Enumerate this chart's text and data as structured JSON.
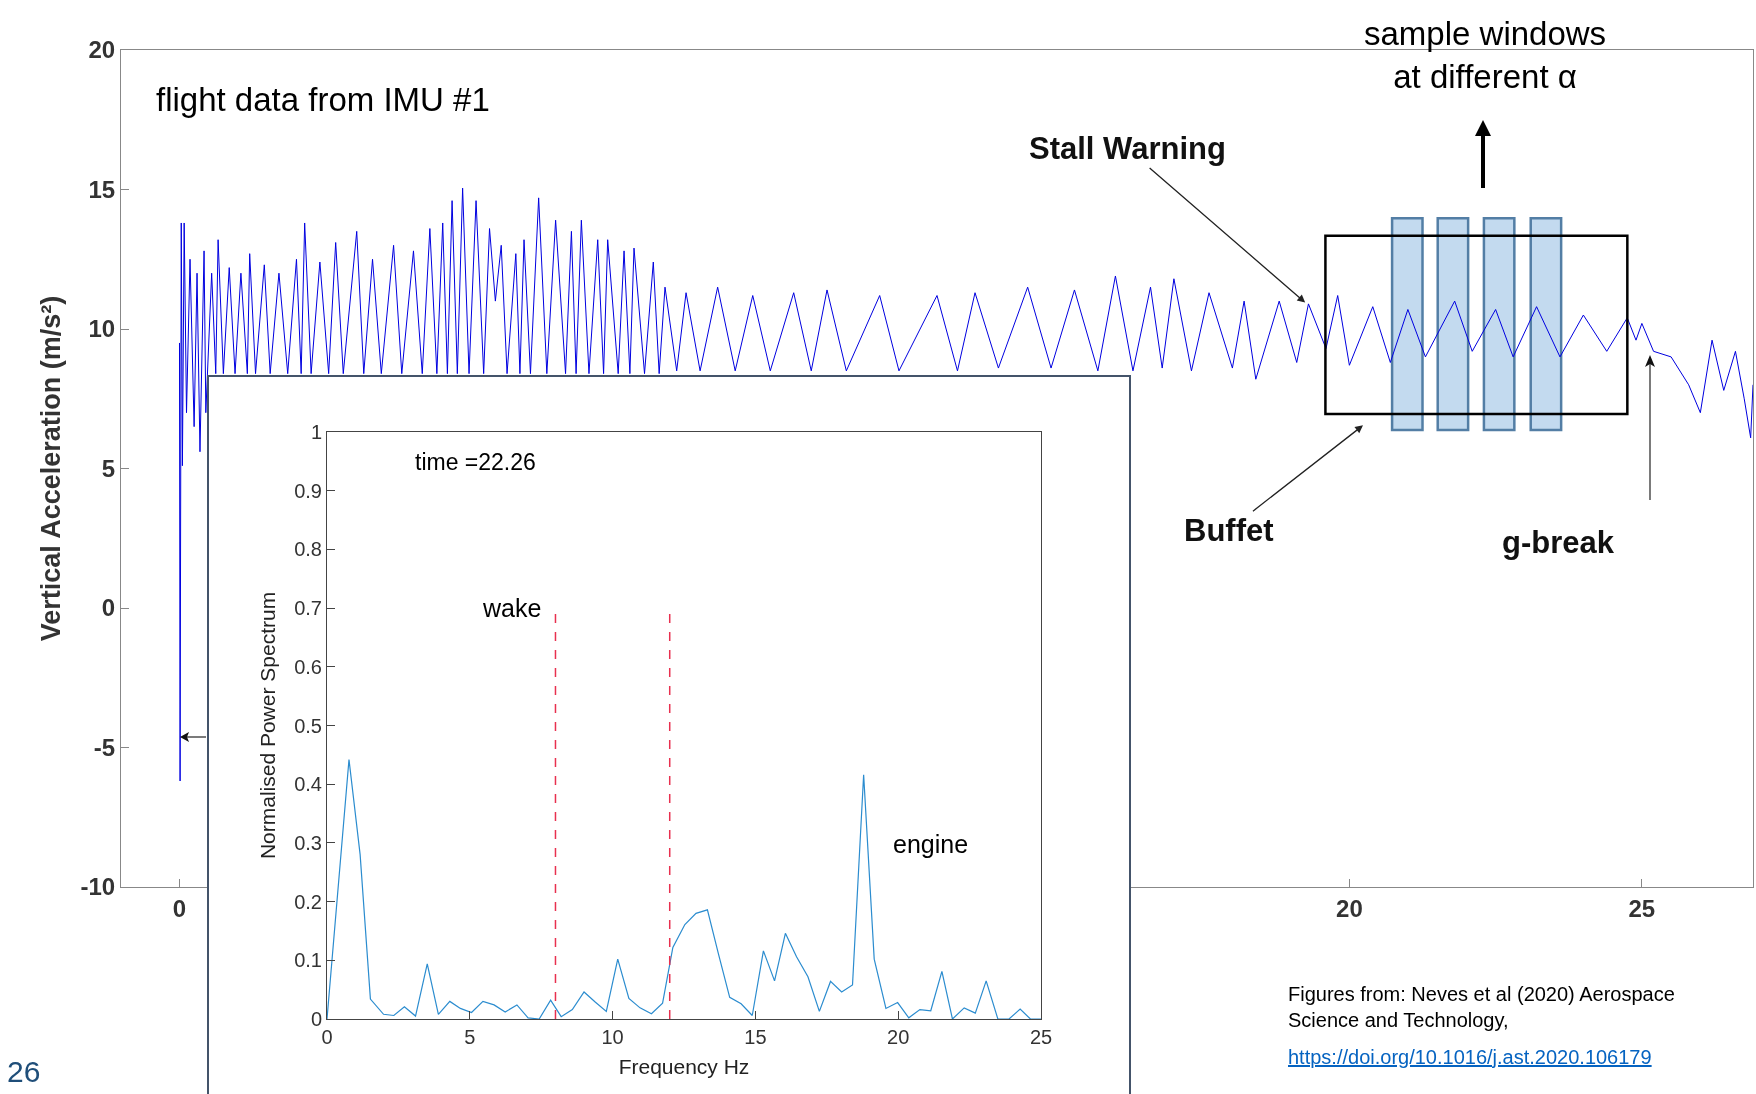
{
  "chart_data": [
    {
      "type": "line",
      "ylabel": "Vertical Acceleration (m/s²)",
      "color": "#0000e0",
      "x": [
        0,
        0.01,
        0.03,
        0.05,
        0.08,
        0.12,
        0.18,
        0.25,
        0.3,
        0.35,
        0.42,
        0.45,
        0.55,
        0.62,
        0.66,
        0.75,
        0.85,
        0.95,
        1.05,
        1.16,
        1.2,
        1.3,
        1.45,
        1.55,
        1.7,
        1.85,
        2.0,
        2.08,
        2.14,
        2.25,
        2.4,
        2.55,
        2.67,
        2.8,
        3.03,
        3.15,
        3.3,
        3.45,
        3.66,
        3.8,
        4.0,
        4.15,
        4.28,
        4.4,
        4.5,
        4.58,
        4.66,
        4.75,
        4.84,
        4.95,
        5.07,
        5.2,
        5.3,
        5.4,
        5.5,
        5.6,
        5.75,
        5.82,
        5.89,
        6.0,
        6.14,
        6.28,
        6.43,
        6.6,
        6.7,
        6.78,
        6.87,
        7.0,
        7.15,
        7.25,
        7.32,
        7.5,
        7.6,
        7.7,
        7.77,
        7.95,
        8.1,
        8.2,
        8.3,
        8.5,
        8.66,
        8.9,
        9.2,
        9.5,
        9.8,
        10.1,
        10.5,
        10.8,
        11.07,
        11.4,
        11.97,
        12.3,
        12.95,
        13.3,
        13.6,
        14.0,
        14.5,
        14.9,
        15.3,
        15.7,
        16.0,
        16.3,
        16.6,
        16.8,
        17.0,
        17.3,
        17.6,
        18.0,
        18.2,
        18.4,
        18.8,
        19.1,
        19.3,
        19.6,
        19.8,
        20.0,
        20.4,
        20.7,
        21.0,
        21.3,
        21.8,
        22.1,
        22.5,
        22.8,
        23.2,
        23.6,
        24.0,
        24.4,
        24.75,
        24.9,
        25.0,
        25.2,
        25.5,
        25.8,
        26.0,
        26.2,
        26.4,
        26.6,
        26.75,
        26.86,
        26.9
      ],
      "values": [
        9.5,
        -6.2,
        13.8,
        5.1,
        13.8,
        7.0,
        12.5,
        6.5,
        12.0,
        5.6,
        12.8,
        7.0,
        12.0,
        8.4,
        13.2,
        8.4,
        12.2,
        8.4,
        12.0,
        8.4,
        12.7,
        8.4,
        12.3,
        8.4,
        12.0,
        8.4,
        12.5,
        8.4,
        13.8,
        8.4,
        12.4,
        8.4,
        13.1,
        8.4,
        13.5,
        8.4,
        12.5,
        8.4,
        13.0,
        8.4,
        12.8,
        8.4,
        13.6,
        8.4,
        13.8,
        8.4,
        14.6,
        8.4,
        15.05,
        8.4,
        14.6,
        8.4,
        13.6,
        11.0,
        13.0,
        8.4,
        12.7,
        8.4,
        13.2,
        8.4,
        14.7,
        8.4,
        13.9,
        8.4,
        13.5,
        8.4,
        13.9,
        8.4,
        13.2,
        8.4,
        13.2,
        8.4,
        12.8,
        8.4,
        12.9,
        8.4,
        12.4,
        8.4,
        11.5,
        8.5,
        11.3,
        8.5,
        11.5,
        8.5,
        11.2,
        8.5,
        11.3,
        8.5,
        11.4,
        8.5,
        11.2,
        8.5,
        11.2,
        8.5,
        11.3,
        8.6,
        11.5,
        8.6,
        11.4,
        8.5,
        11.9,
        8.5,
        11.5,
        8.6,
        11.8,
        8.5,
        11.3,
        8.6,
        11.0,
        8.2,
        11.0,
        8.8,
        10.9,
        9.3,
        11.2,
        8.7,
        10.8,
        8.8,
        10.7,
        9.0,
        11.0,
        9.2,
        10.7,
        9.0,
        10.8,
        9.0,
        10.5,
        9.2,
        10.4,
        9.6,
        10.2,
        9.2,
        9.0,
        8.0,
        7.0,
        9.6,
        7.8,
        9.2,
        7.5,
        6.1,
        8.0
      ],
      "xlim": [
        -1,
        26.9
      ],
      "xticks": [
        0,
        20,
        25
      ],
      "ylim": [
        -10,
        20
      ],
      "yticks": [
        -10,
        -5,
        0,
        5,
        10,
        15,
        20
      ],
      "bands": [
        {
          "axis": "x",
          "from": 20.73,
          "to": 21.25,
          "color": "#bdd7ee"
        },
        {
          "axis": "x",
          "from": 21.51,
          "to": 22.03,
          "color": "#bdd7ee"
        },
        {
          "axis": "x",
          "from": 22.3,
          "to": 22.82,
          "color": "#bdd7ee"
        },
        {
          "axis": "x",
          "from": 23.1,
          "to": 23.62,
          "color": "#bdd7ee"
        }
      ],
      "annotations": [
        "flight data from IMU #1",
        {
          "text": "Stall Warning",
          "x": 19.27,
          "y": 10.9
        },
        "Buffet",
        "g-break",
        "sample windows\nat different α",
        "Figures from: Neves et al (2020) Aerospace\nScience and Technology,",
        "https://doi.org/10.1016/j.ast.2020.106179",
        "26"
      ]
    },
    {
      "type": "line",
      "xlabel": "Frequency Hz",
      "ylabel": "Normalised Power Spectrum",
      "color": "#2b8ccf",
      "x": [
        0,
        0.77,
        1.16,
        1.52,
        1.98,
        2.34,
        2.71,
        3.1,
        3.51,
        3.9,
        4.3,
        4.67,
        5.06,
        5.46,
        5.85,
        6.24,
        6.65,
        7.04,
        7.43,
        7.83,
        8.2,
        8.59,
        9.0,
        9.39,
        9.78,
        10.18,
        10.57,
        10.96,
        11.36,
        11.75,
        12.11,
        12.53,
        12.92,
        13.32,
        13.71,
        14.1,
        14.5,
        14.89,
        15.28,
        15.67,
        16.05,
        16.44,
        16.84,
        17.24,
        17.63,
        18.02,
        18.4,
        18.79,
        19.16,
        19.57,
        19.98,
        20.37,
        20.76,
        21.14,
        21.53,
        21.9,
        22.31,
        22.7,
        23.08,
        23.49,
        23.88,
        24.27,
        24.63,
        25
      ],
      "values": [
        0,
        0.442,
        0.28,
        0.034,
        0.008,
        0.006,
        0.021,
        0.005,
        0.094,
        0.008,
        0.03,
        0.018,
        0.011,
        0.03,
        0.024,
        0.012,
        0.024,
        0.002,
        0,
        0.032,
        0.004,
        0.016,
        0.046,
        0.029,
        0.013,
        0.102,
        0.035,
        0.019,
        0.009,
        0.027,
        0.122,
        0.161,
        0.18,
        0.186,
        0.11,
        0.037,
        0.026,
        0.006,
        0.116,
        0.065,
        0.146,
        0.106,
        0.072,
        0.013,
        0.064,
        0.046,
        0.058,
        0.416,
        0.102,
        0.018,
        0.028,
        0.002,
        0.016,
        0.014,
        0.081,
        0,
        0.019,
        0.01,
        0.065,
        0,
        0,
        0.017,
        0,
        0
      ],
      "xlim": [
        0,
        25
      ],
      "xticks": [
        0,
        5,
        10,
        15,
        20,
        25
      ],
      "ylim": [
        0,
        1
      ],
      "yticks": [
        0,
        0.1,
        0.2,
        0.3,
        0.4,
        0.5,
        0.6,
        0.7,
        0.8,
        0.9,
        1
      ],
      "ref_lines": [
        {
          "axis": "x",
          "value": 8,
          "label": "wake",
          "color": "#e8304f",
          "line_style": "dashed"
        },
        {
          "axis": "x",
          "value": 12,
          "color": "#e8304f",
          "line_style": "dashed"
        }
      ],
      "annotations": [
        "time =22.26",
        "engine"
      ]
    }
  ]
}
